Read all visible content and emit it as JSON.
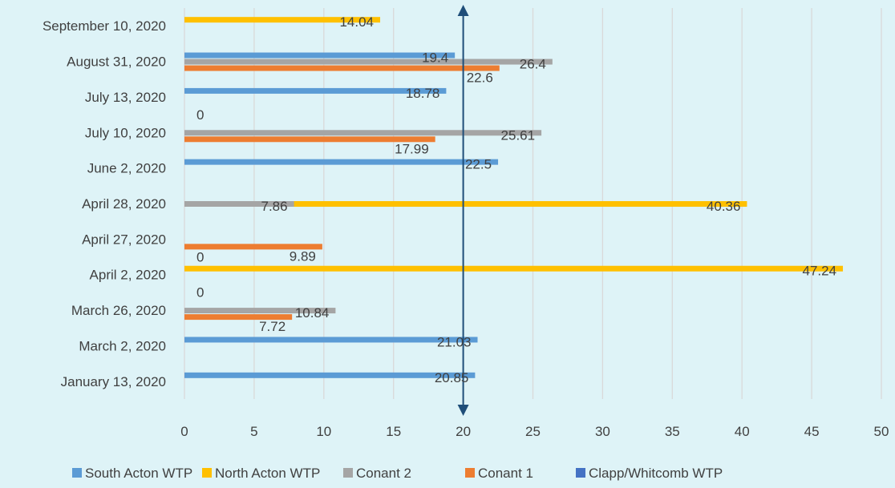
{
  "chart_data": {
    "type": "bar",
    "orientation": "horizontal",
    "title": "",
    "xlabel": "",
    "ylabel": "",
    "xlim": [
      0,
      50
    ],
    "x_ticks": [
      0,
      5,
      10,
      15,
      20,
      25,
      30,
      35,
      40,
      45,
      50
    ],
    "grid": true,
    "legend_position": "bottom",
    "categories": [
      "September 10, 2020",
      "August 31, 2020",
      "July 13, 2020",
      "July 10, 2020",
      "June 2, 2020",
      "April 28, 2020",
      "April 27, 2020",
      "April 2, 2020",
      "March 26, 2020",
      "March 2, 2020",
      "January 13, 2020"
    ],
    "series": [
      {
        "name": "South Acton WTP",
        "color": "#5b9bd5",
        "values": [
          null,
          19.4,
          18.78,
          null,
          22.5,
          null,
          null,
          null,
          null,
          21.03,
          20.85
        ]
      },
      {
        "name": "North Acton WTP",
        "color": "#ffc000",
        "values": [
          14.04,
          null,
          null,
          null,
          null,
          40.36,
          null,
          47.24,
          null,
          null,
          null
        ]
      },
      {
        "name": "Conant 2",
        "color": "#a5a5a5",
        "values": [
          null,
          26.4,
          null,
          25.61,
          null,
          7.86,
          null,
          null,
          10.84,
          null,
          null
        ]
      },
      {
        "name": "Conant 1",
        "color": "#ed7d31",
        "values": [
          null,
          22.6,
          null,
          17.99,
          null,
          null,
          9.89,
          null,
          7.72,
          null,
          null
        ]
      },
      {
        "name": "Clapp/Whitcomb WTP",
        "color": "#4472c4",
        "values": [
          null,
          null,
          0,
          null,
          null,
          null,
          0,
          0,
          null,
          null,
          null
        ]
      }
    ],
    "reference_line": {
      "x": 20,
      "color": "#1f4e79",
      "arrows": "both"
    }
  }
}
